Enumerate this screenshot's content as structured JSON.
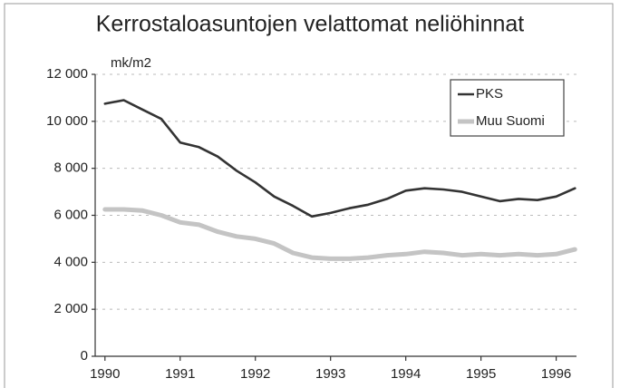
{
  "chart_data": {
    "type": "line",
    "title": "Kerrostaloasuntojen velattomat neliöhinnat",
    "y_label": "mk/m2",
    "x": [
      1990.0,
      1990.25,
      1990.5,
      1990.75,
      1991.0,
      1991.25,
      1991.5,
      1991.75,
      1992.0,
      1992.25,
      1992.5,
      1992.75,
      1993.0,
      1993.25,
      1993.5,
      1993.75,
      1994.0,
      1994.25,
      1994.5,
      1994.75,
      1995.0,
      1995.25,
      1995.5,
      1995.75,
      1996.0,
      1996.25
    ],
    "series": [
      {
        "name": "PKS",
        "color": "#333333",
        "values": [
          10750,
          10900,
          10500,
          10100,
          9100,
          8900,
          8500,
          7900,
          7400,
          6800,
          6400,
          5950,
          6100,
          6300,
          6450,
          6700,
          7050,
          7150,
          7100,
          7000,
          6800,
          6600,
          6700,
          6650,
          6800,
          7150
        ]
      },
      {
        "name": "Muu Suomi",
        "color": "#c4c4c4",
        "values": [
          6250,
          6250,
          6200,
          6000,
          5700,
          5600,
          5300,
          5100,
          5000,
          4800,
          4400,
          4200,
          4150,
          4150,
          4200,
          4300,
          4350,
          4450,
          4400,
          4300,
          4350,
          4300,
          4350,
          4300,
          4350,
          4550
        ]
      }
    ],
    "xlim": [
      1989.87,
      1996.27
    ],
    "xticks": [
      1990,
      1991,
      1992,
      1993,
      1994,
      1995,
      1996
    ],
    "ylim": [
      0,
      12000
    ],
    "yticks": [
      0,
      {
        "value": 2000,
        "label": "2 000"
      },
      {
        "value": 4000,
        "label": "4 000"
      },
      {
        "value": 6000,
        "label": "6 000"
      },
      {
        "value": 8000,
        "label": "8 000"
      },
      {
        "value": 10000,
        "label": "10 000"
      },
      {
        "value": 12000,
        "label": "12 000"
      }
    ],
    "grid": true,
    "legend": "upper right"
  }
}
